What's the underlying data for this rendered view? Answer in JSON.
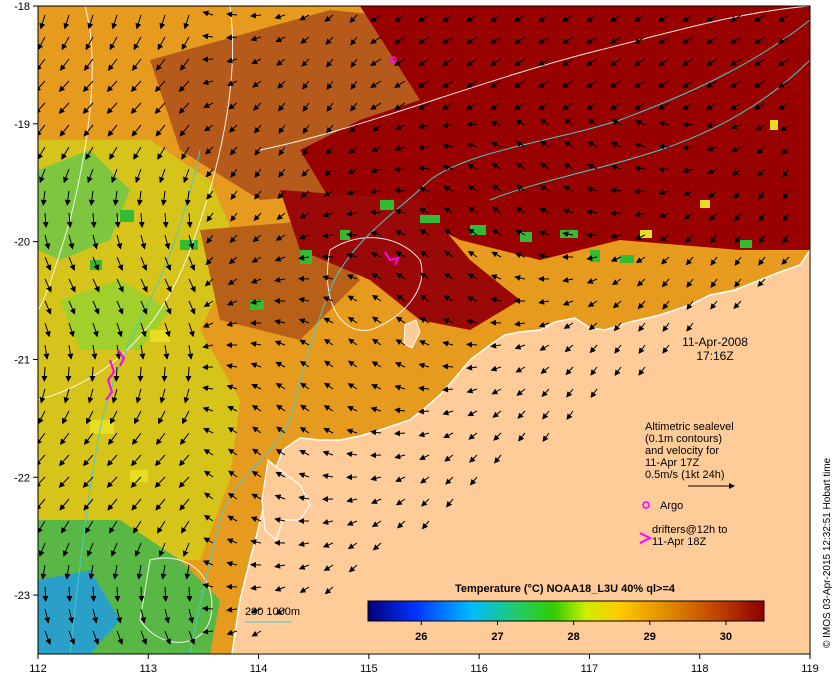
{
  "map": {
    "date_label": "11-Apr-2008",
    "time_label": "17:16Z",
    "x_ticks": [
      "112",
      "113",
      "114",
      "115",
      "116",
      "117",
      "118",
      "119"
    ],
    "y_ticks": [
      "-18",
      "-19",
      "-20",
      "-21",
      "-22",
      "-23"
    ],
    "lon_range": [
      112,
      119
    ],
    "lat_range": [
      -23.5,
      -18
    ],
    "land_color": "#ffcc99",
    "sst_hot_color": "#990000"
  },
  "legend": {
    "line1": "Altimetric sealevel",
    "line2": "(0.1m contours)",
    "line3": "and velocity for",
    "line4": "11-Apr 17Z",
    "line5": "0.5m/s (1kt 24h)",
    "argo": "Argo",
    "drifters_line1": "drifters@12h to",
    "drifters_line2": "11-Apr 18Z",
    "bathy": "200  1000m"
  },
  "colorbar": {
    "title": "Temperature (°C) NOAA18_L3U 40% ql>=4",
    "ticks": [
      "26",
      "27",
      "28",
      "29",
      "30"
    ],
    "range": [
      25.3,
      30.5
    ]
  },
  "credit": "© IMOS 03-Apr-2015 12:32:51 Hobart time"
}
